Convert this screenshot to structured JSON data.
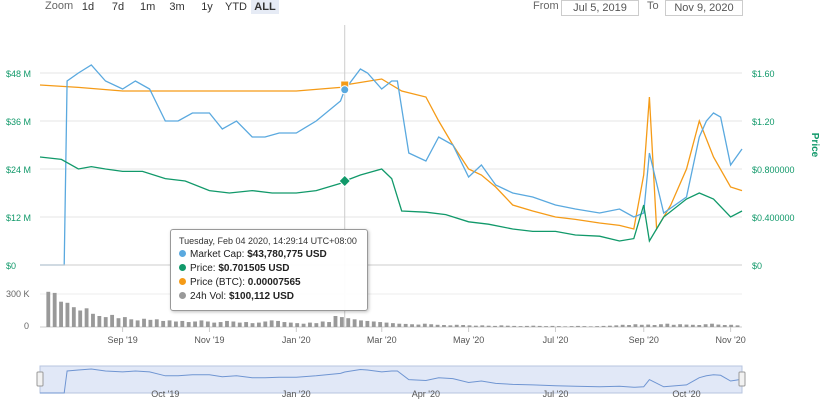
{
  "toolbar": {
    "zoom_label": "Zoom",
    "zoom_buttons": [
      "1d",
      "7d",
      "1m",
      "3m",
      "1y",
      "YTD",
      "ALL"
    ],
    "from_label": "From",
    "from_value": "Jul 5, 2019",
    "to_label": "To",
    "to_value": "Nov 9, 2020"
  },
  "colors": {
    "market_cap": "#5aa9df",
    "price": "#11996a",
    "price_btc": "#f59b17",
    "volume": "#999999",
    "navigator_fill": "#c8d6f0",
    "navigator_line": "#6f95d2"
  },
  "tooltip": {
    "header": "Tuesday, Feb 04 2020, 14:29:14 UTC+08:00",
    "market_cap_label": "Market Cap:",
    "market_cap_value": "$43,780,775 USD",
    "price_label": "Price:",
    "price_value": "$0.701505 USD",
    "price_btc_label": "Price (BTC):",
    "price_btc_value": "0.00007565",
    "volume_label": "24h Vol:",
    "volume_value": "$100,112 USD"
  },
  "chart_data": {
    "type": "line",
    "y_left_ticks": [
      "$0",
      "$12 M",
      "$24 M",
      "$36 M",
      "$48 M"
    ],
    "y_right_ticks": [
      "$0",
      "$0.400000",
      "$0.800000",
      "$1.20",
      "$1.60"
    ],
    "y_right_label": "Price",
    "volume_ticks": [
      "0",
      "300 K"
    ],
    "x_ticks": [
      "Sep '19",
      "Nov '19",
      "Jan '20",
      "Mar '20",
      "May '20",
      "Jul '20",
      "Sep '20",
      "Nov '20"
    ],
    "navigator_ticks": [
      "Oct '19",
      "Jan '20",
      "Apr '20",
      "Jul '20",
      "Oct '20"
    ],
    "x_range": [
      "2019-07-05",
      "2020-11-09"
    ],
    "ylim_market_cap_musd": [
      0,
      48
    ],
    "ylim_price_usd": [
      0,
      1.6
    ],
    "grid": true,
    "series": [
      {
        "name": "Market Cap",
        "x": [
          "2019-07-05",
          "2019-07-22",
          "2019-07-24",
          "2019-08-01",
          "2019-08-10",
          "2019-08-20",
          "2019-09-01",
          "2019-09-10",
          "2019-09-20",
          "2019-10-01",
          "2019-10-10",
          "2019-10-20",
          "2019-11-01",
          "2019-11-10",
          "2019-11-20",
          "2019-12-01",
          "2019-12-10",
          "2019-12-20",
          "2020-01-01",
          "2020-01-15",
          "2020-02-01",
          "2020-02-04",
          "2020-02-15",
          "2020-02-20",
          "2020-03-01",
          "2020-03-08",
          "2020-03-12",
          "2020-03-20",
          "2020-04-01",
          "2020-04-10",
          "2020-04-20",
          "2020-05-01",
          "2020-05-10",
          "2020-05-20",
          "2020-06-01",
          "2020-06-15",
          "2020-07-01",
          "2020-07-15",
          "2020-08-01",
          "2020-08-15",
          "2020-08-25",
          "2020-09-01",
          "2020-09-05",
          "2020-09-15",
          "2020-10-01",
          "2020-10-10",
          "2020-10-15",
          "2020-10-20",
          "2020-10-25",
          "2020-11-01",
          "2020-11-05",
          "2020-11-09"
        ],
        "values": [
          0,
          0,
          46,
          48,
          50,
          46,
          44,
          46,
          44,
          36,
          36,
          38,
          38,
          34,
          36,
          32,
          32,
          33,
          33,
          36,
          41,
          43.8,
          49,
          48,
          44,
          46,
          46,
          28,
          26,
          32,
          30,
          22,
          25,
          20,
          18,
          17,
          15,
          14,
          13,
          14,
          12,
          13,
          28,
          13,
          17,
          32,
          36,
          38,
          37,
          25,
          27,
          29
        ]
      },
      {
        "name": "Price",
        "x": [
          "2019-07-05",
          "2019-07-20",
          "2019-08-01",
          "2019-08-10",
          "2019-08-20",
          "2019-09-01",
          "2019-09-15",
          "2019-10-01",
          "2019-10-15",
          "2019-11-01",
          "2019-11-15",
          "2019-12-01",
          "2019-12-15",
          "2020-01-01",
          "2020-01-15",
          "2020-02-01",
          "2020-02-04",
          "2020-02-15",
          "2020-03-01",
          "2020-03-08",
          "2020-03-15",
          "2020-04-01",
          "2020-04-15",
          "2020-05-01",
          "2020-05-15",
          "2020-06-01",
          "2020-06-15",
          "2020-07-01",
          "2020-07-15",
          "2020-08-01",
          "2020-08-15",
          "2020-08-25",
          "2020-09-01",
          "2020-09-05",
          "2020-09-15",
          "2020-10-01",
          "2020-10-10",
          "2020-10-20",
          "2020-11-01",
          "2020-11-09"
        ],
        "values": [
          0.9,
          0.88,
          0.8,
          0.82,
          0.8,
          0.78,
          0.78,
          0.72,
          0.7,
          0.62,
          0.6,
          0.62,
          0.6,
          0.6,
          0.62,
          0.68,
          0.7,
          0.75,
          0.8,
          0.72,
          0.45,
          0.44,
          0.42,
          0.36,
          0.34,
          0.3,
          0.28,
          0.28,
          0.25,
          0.24,
          0.2,
          0.22,
          0.5,
          0.2,
          0.4,
          0.55,
          0.6,
          0.55,
          0.4,
          0.45
        ]
      },
      {
        "name": "Price (BTC)",
        "x": [
          "2019-07-05",
          "2019-08-01",
          "2019-09-01",
          "2019-10-01",
          "2019-11-01",
          "2019-12-01",
          "2020-01-01",
          "2020-02-01",
          "2020-02-04",
          "2020-03-01",
          "2020-03-15",
          "2020-04-01",
          "2020-04-10",
          "2020-04-20",
          "2020-05-01",
          "2020-05-10",
          "2020-05-20",
          "2020-06-01",
          "2020-06-15",
          "2020-07-01",
          "2020-07-15",
          "2020-08-01",
          "2020-08-15",
          "2020-08-25",
          "2020-09-01",
          "2020-09-05",
          "2020-09-10",
          "2020-09-20",
          "2020-10-01",
          "2020-10-10",
          "2020-10-20",
          "2020-11-01",
          "2020-11-09"
        ],
        "values": [
          1.5,
          1.48,
          1.45,
          1.45,
          1.45,
          1.45,
          1.45,
          1.48,
          1.5,
          1.55,
          1.45,
          1.4,
          1.2,
          1.0,
          0.8,
          0.75,
          0.65,
          0.5,
          0.45,
          0.4,
          0.38,
          0.35,
          0.33,
          0.3,
          0.75,
          1.4,
          0.3,
          0.5,
          0.8,
          1.2,
          0.9,
          0.65,
          0.62
        ]
      },
      {
        "name": "24h Vol",
        "unit": "K USD",
        "values": [
          0,
          320,
          310,
          230,
          220,
          180,
          150,
          170,
          120,
          100,
          90,
          110,
          80,
          90,
          70,
          60,
          75,
          65,
          70,
          55,
          60,
          50,
          55,
          45,
          50,
          60,
          50,
          40,
          45,
          55,
          50,
          40,
          45,
          35,
          40,
          50,
          60,
          55,
          45,
          40,
          35,
          30,
          40,
          35,
          50,
          45,
          100,
          90,
          80,
          70,
          60,
          55,
          50,
          45,
          40,
          35,
          30,
          28,
          25,
          22,
          30,
          25,
          20,
          18,
          15,
          20,
          18,
          15,
          12,
          15,
          12,
          10,
          15,
          12,
          10,
          8,
          10,
          12,
          10,
          8,
          10,
          8,
          6,
          8,
          10,
          8,
          6,
          8,
          10,
          12,
          15,
          20,
          18,
          25,
          20,
          22,
          18,
          25,
          30,
          20,
          25,
          22,
          20,
          18,
          25,
          30,
          22,
          18,
          20,
          15
        ]
      }
    ]
  }
}
